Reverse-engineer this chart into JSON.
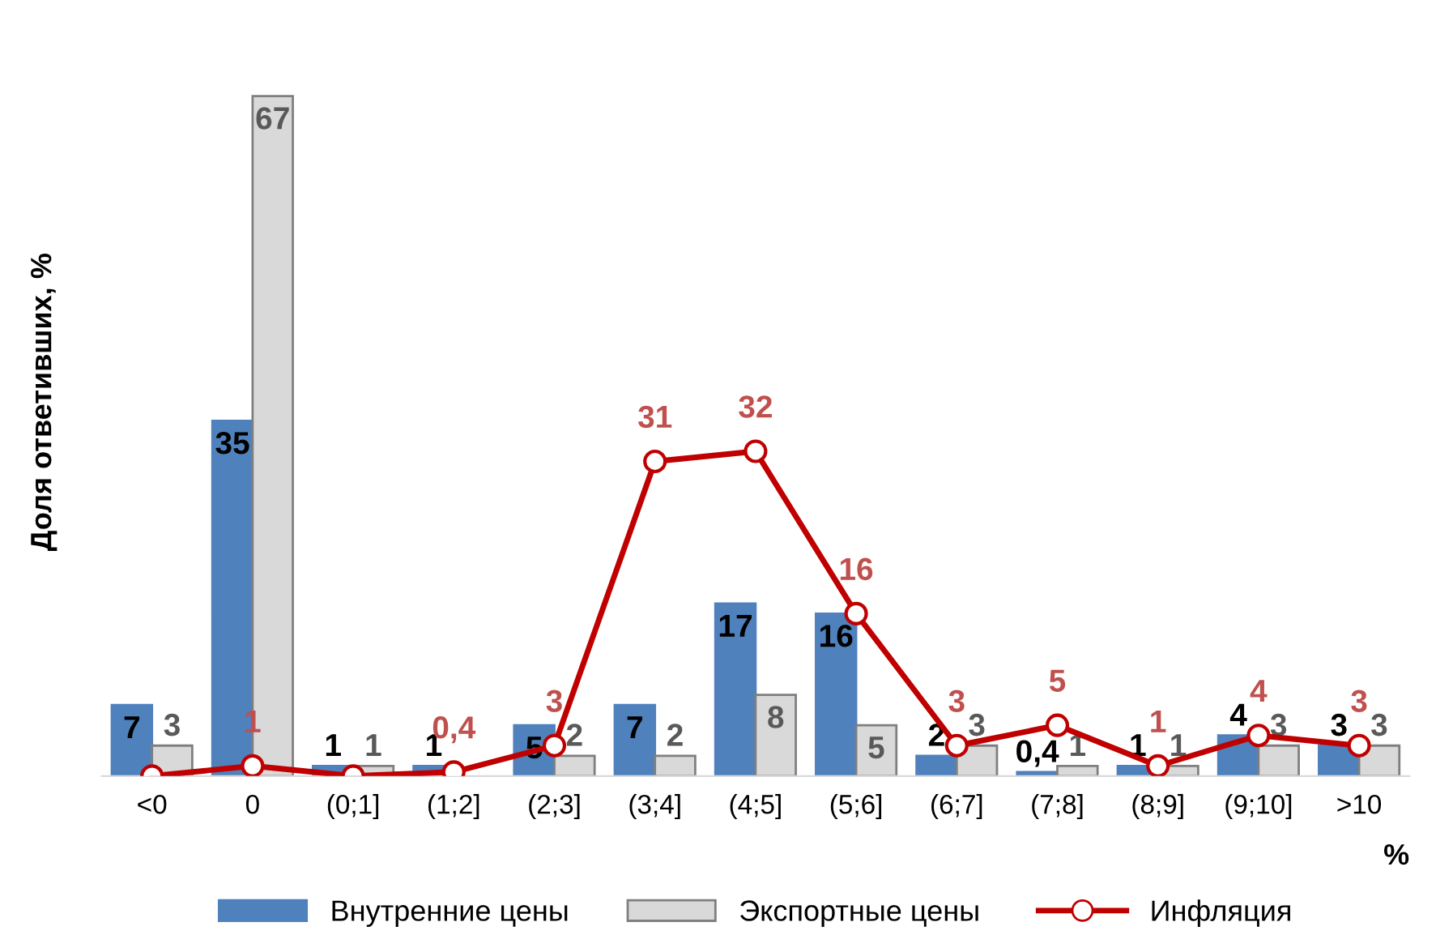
{
  "chart_data": {
    "type": "bar",
    "ylabel": "Доля ответивших, %",
    "xlabel": "%",
    "categories": [
      "<0",
      "0",
      "(0;1]",
      "(1;2]",
      "(2;3]",
      "(3;4]",
      "(4;5]",
      "(5;6]",
      "(6;7]",
      "(7;8]",
      "(8;9]",
      "(9;10]",
      ">10"
    ],
    "series": [
      {
        "name": "Внутренние цены",
        "color": "#4f81bd",
        "values": [
          7,
          35,
          1,
          1,
          5,
          7,
          17,
          16,
          2,
          0.4,
          1,
          4,
          3
        ],
        "value_labels": [
          "7",
          "35",
          "1",
          "1",
          "5",
          "7",
          "17",
          "16",
          "2",
          "0,4",
          "1",
          "4",
          "3"
        ]
      },
      {
        "name": "Экспортные цены",
        "color": "#d9d9d9",
        "values": [
          3,
          67,
          1,
          0,
          2,
          2,
          8,
          5,
          3,
          1,
          1,
          3,
          3
        ],
        "value_labels": [
          "3",
          "67",
          "1",
          null,
          "2",
          "2",
          "8",
          "5",
          "3",
          "1",
          "1",
          "3",
          "3"
        ]
      },
      {
        "name": "Инфляция",
        "type": "line",
        "color": "#c00000",
        "values": [
          0,
          1,
          0,
          0.4,
          3,
          31,
          32,
          16,
          3,
          5,
          1,
          4,
          3
        ],
        "value_labels": [
          null,
          "1",
          null,
          "0,4",
          "3",
          "31",
          "32",
          "16",
          "3",
          "5",
          "1",
          "4",
          "3"
        ]
      }
    ],
    "legend": "bottom",
    "marker": "circle"
  }
}
